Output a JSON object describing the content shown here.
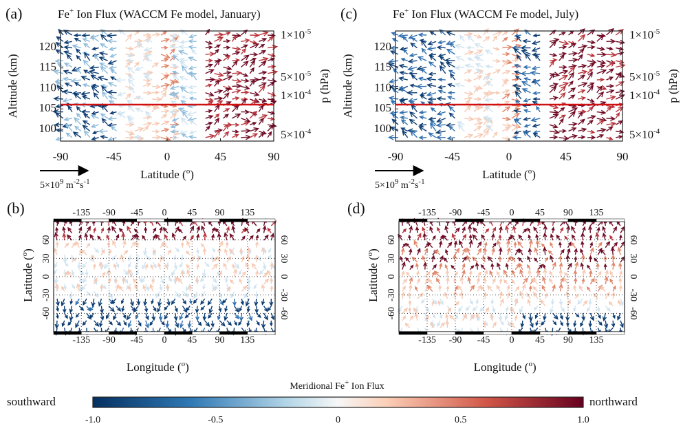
{
  "panels": [
    {
      "label": "(a)",
      "title": [
        "Fe",
        "+",
        " Ion Flux (WACCM Fe model, January)"
      ],
      "y_label": "Altitude (km)",
      "y_ticks": [
        "100",
        "105",
        "110",
        "115",
        "120"
      ],
      "x_ticks": [
        "-90",
        "-45",
        "0",
        "45",
        "90"
      ],
      "x_label": [
        "Latitude (",
        "o",
        ")"
      ],
      "y2_label": "p (hPa)",
      "y2_ticks": [
        [
          "1×10",
          "-5"
        ],
        [
          "5×10",
          "-5"
        ],
        [
          "1×10",
          "-4"
        ],
        [
          "5×10",
          "-4"
        ]
      ],
      "scale": [
        "5×10",
        "9",
        " m",
        "-2",
        "s",
        "-1"
      ]
    },
    {
      "label": "(c)",
      "title": [
        "Fe",
        "+",
        " Ion Flux (WACCM Fe model, July)"
      ],
      "y_label": "Altitude (km)",
      "y_ticks": [
        "100",
        "105",
        "110",
        "115",
        "120"
      ],
      "x_ticks": [
        "-90",
        "-45",
        "0",
        "45",
        "90"
      ],
      "x_label": [
        "Latitude (",
        "o",
        ")"
      ],
      "y2_label": "p (hPa)",
      "y2_ticks": [
        [
          "1×10",
          "-5"
        ],
        [
          "5×10",
          "-5"
        ],
        [
          "1×10",
          "-4"
        ],
        [
          "5×10",
          "-4"
        ]
      ],
      "scale": [
        "5×10",
        "9",
        " m",
        "-2",
        "s",
        "-1"
      ]
    },
    {
      "label": "(b)",
      "lon_ticks": [
        "-135",
        "-90",
        "-45",
        "0",
        "45",
        "90",
        "135"
      ],
      "lat_ticks": [
        "60",
        "30",
        "0",
        "-30",
        "-60"
      ],
      "y_label": [
        "Latitude (",
        "o",
        ")"
      ],
      "x_label": [
        "Longitude (",
        "o",
        ")"
      ]
    },
    {
      "label": "(d)",
      "lon_ticks": [
        "-135",
        "-90",
        "-45",
        "0",
        "45",
        "90",
        "135"
      ],
      "lat_ticks": [
        "60",
        "30",
        "0",
        "-30",
        "-60"
      ],
      "y_label": [
        "Latitude (",
        "o",
        ")"
      ],
      "x_label": [
        "Longitude (",
        "o",
        ")"
      ]
    }
  ],
  "colorbar": {
    "title": [
      "Meridional Fe",
      "+",
      " Ion Flux"
    ],
    "left": "southward",
    "right": "northward",
    "ticks": [
      "-1.0",
      "-0.5",
      "0",
      "0.5",
      "1.0"
    ]
  }
}
